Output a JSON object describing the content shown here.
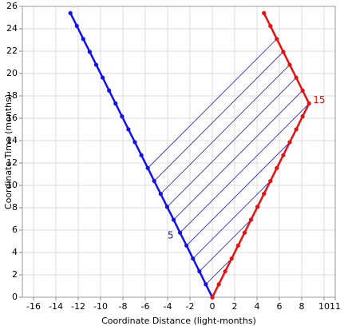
{
  "chart_data": {
    "type": "line",
    "x_label": "Coordinate Distance (light-months)",
    "y_label": "Coordinate Time (months)",
    "xlim": [
      -17,
      11
    ],
    "ylim": [
      0,
      26
    ],
    "xticks": [
      -16,
      -14,
      -12,
      -10,
      -8,
      -6,
      -4,
      -2,
      0,
      2,
      4,
      6,
      8,
      10,
      11
    ],
    "yticks": [
      0,
      2,
      4,
      6,
      8,
      10,
      12,
      14,
      16,
      18,
      20,
      22,
      24,
      26
    ],
    "grid": true,
    "series": [
      {
        "color": "#1010f0",
        "x": [
          0,
          -0.58,
          -1.15,
          -1.73,
          -2.31,
          -2.89,
          -3.46,
          -4.04,
          -4.62,
          -5.2,
          -5.77,
          -6.35,
          -6.93,
          -7.51,
          -8.08,
          -8.66,
          -9.24,
          -9.81,
          -10.39,
          -10.97,
          -11.55,
          -12.12,
          -12.7
        ],
        "y": [
          0,
          1.15,
          2.31,
          3.46,
          4.62,
          5.77,
          6.93,
          8.08,
          9.24,
          10.39,
          11.55,
          12.7,
          13.86,
          15.01,
          16.17,
          17.32,
          18.48,
          19.63,
          20.78,
          21.94,
          23.09,
          24.25,
          25.4
        ]
      },
      {
        "color": "#e81010",
        "x": [
          0,
          0.58,
          1.15,
          1.73,
          2.31,
          2.89,
          3.46,
          4.04,
          4.62,
          5.2,
          5.77,
          6.35,
          6.93,
          7.51,
          8.08,
          8.66,
          8.08,
          7.51,
          6.93,
          6.35,
          5.77,
          5.2,
          4.62
        ],
        "y": [
          0,
          1.15,
          2.31,
          3.46,
          4.62,
          5.77,
          6.93,
          8.08,
          9.24,
          10.39,
          11.55,
          12.7,
          13.86,
          15.01,
          16.17,
          17.32,
          18.48,
          19.63,
          20.78,
          21.94,
          23.09,
          24.25,
          25.4
        ]
      }
    ],
    "signal_color": "#1c1cc8",
    "signals": [
      {
        "x": [
          -0.58,
          1.73
        ],
        "y": [
          1.15,
          3.46
        ]
      },
      {
        "x": [
          -1.15,
          3.46
        ],
        "y": [
          2.31,
          6.93
        ]
      },
      {
        "x": [
          -1.73,
          5.2
        ],
        "y": [
          3.46,
          10.39
        ]
      },
      {
        "x": [
          -2.31,
          6.93
        ],
        "y": [
          4.62,
          13.86
        ]
      },
      {
        "x": [
          -2.89,
          8.66
        ],
        "y": [
          5.77,
          17.32
        ]
      },
      {
        "x": [
          -3.46,
          8.08
        ],
        "y": [
          6.93,
          18.48
        ]
      },
      {
        "x": [
          -4.04,
          7.51
        ],
        "y": [
          8.08,
          19.63
        ]
      },
      {
        "x": [
          -4.62,
          6.93
        ],
        "y": [
          9.24,
          20.78
        ]
      },
      {
        "x": [
          -5.2,
          6.35
        ],
        "y": [
          10.39,
          21.94
        ]
      },
      {
        "x": [
          -5.77,
          5.77
        ],
        "y": [
          11.55,
          23.09
        ]
      }
    ],
    "annotations": [
      {
        "text": "5",
        "x": -2.89,
        "y": 5.77,
        "color": "#1010f0",
        "side": "left"
      },
      {
        "text": "15",
        "x": 8.66,
        "y": 17.32,
        "color": "#e81010",
        "side": "right"
      }
    ]
  }
}
